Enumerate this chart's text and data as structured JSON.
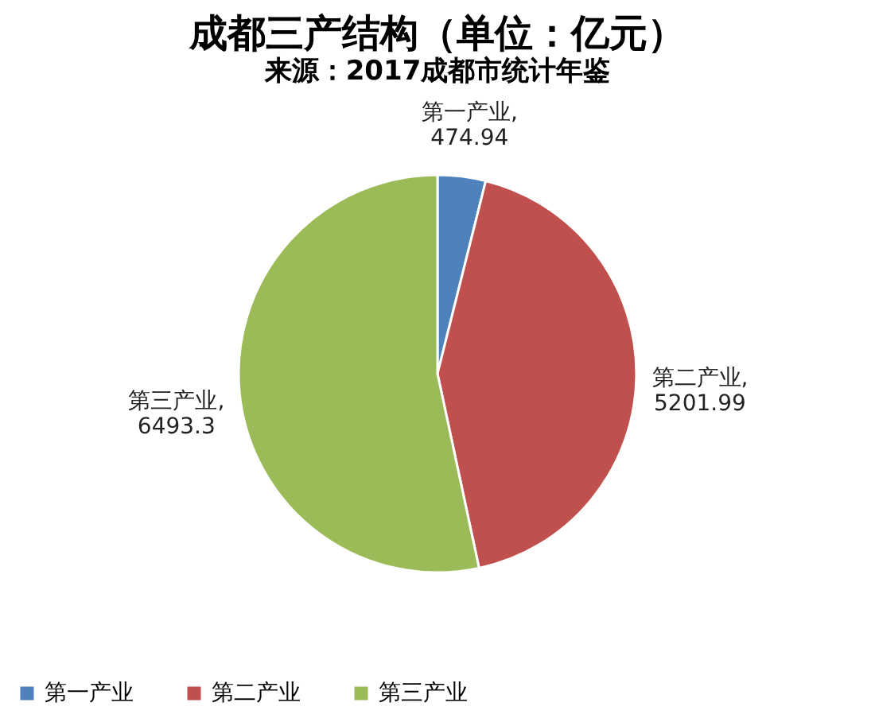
{
  "chart_data": {
    "type": "pie",
    "title": "成都三产结构（单位：亿元）",
    "subtitle": "来源：2017成都市统计年鉴",
    "categories": [
      "第一产业",
      "第二产业",
      "第三产业"
    ],
    "values": [
      474.94,
      5201.99,
      6493.3
    ],
    "colors": [
      "#4f81bd",
      "#c0504d",
      "#9bbb59"
    ],
    "value_labels": [
      "第一产业,\n474.94",
      "第二产业,\n5201.99",
      "第三产业,\n6493.3"
    ],
    "legend": "bottom"
  }
}
